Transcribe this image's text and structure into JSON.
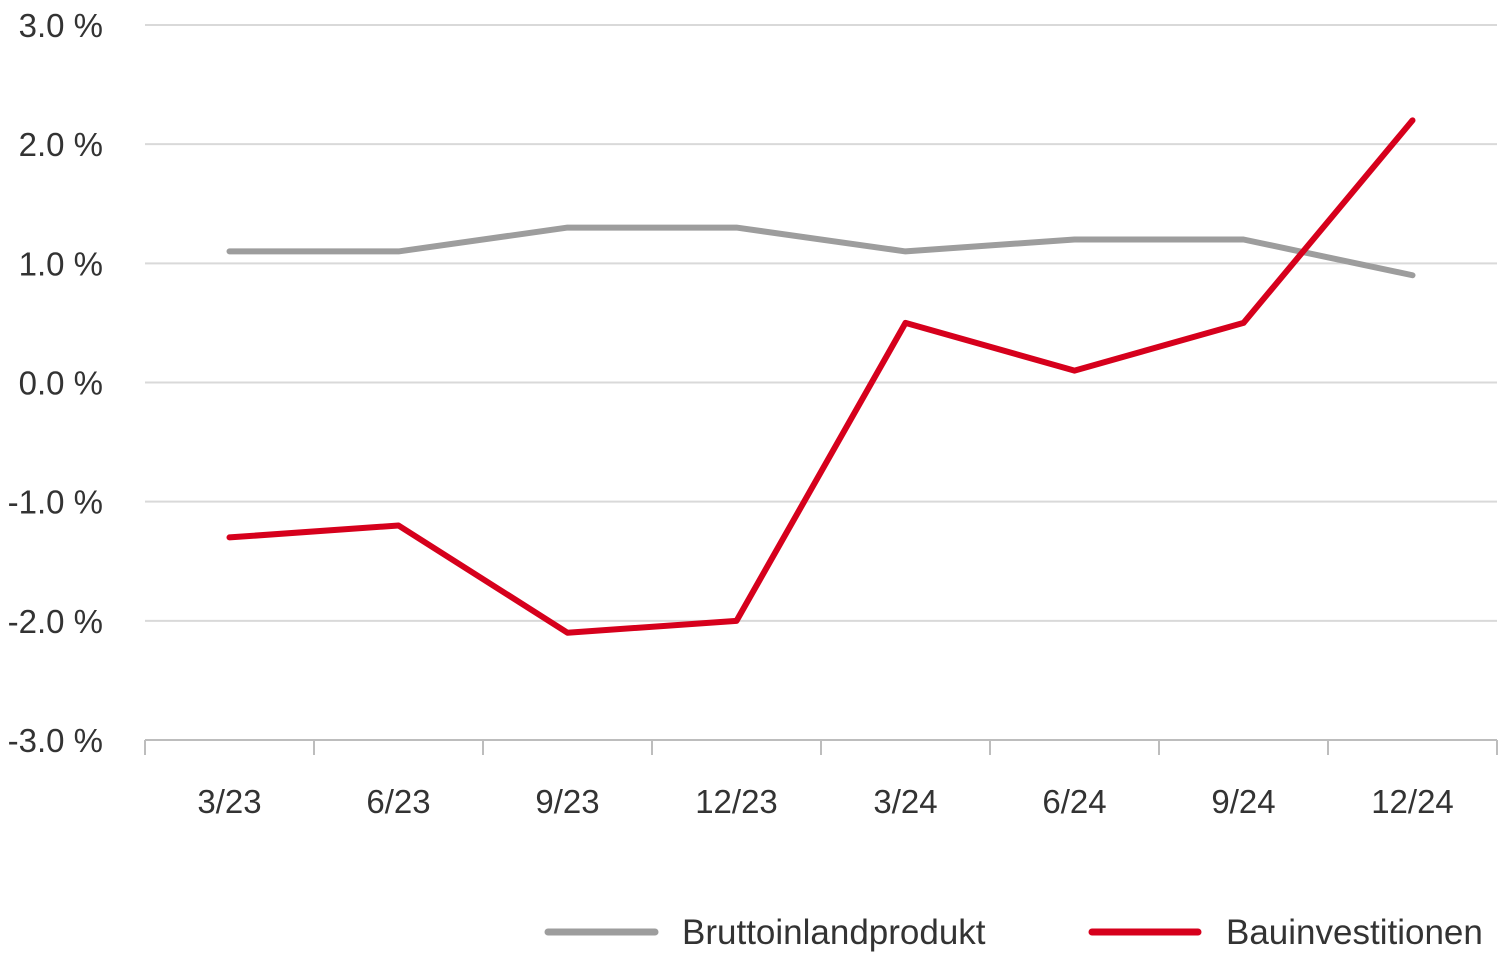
{
  "chart_data": {
    "type": "line",
    "title": "",
    "xlabel": "",
    "ylabel": "",
    "categories": [
      "3/23",
      "6/23",
      "9/23",
      "12/23",
      "3/24",
      "6/24",
      "9/24",
      "12/24"
    ],
    "ylim": [
      -3.0,
      3.0
    ],
    "yticks": [
      3.0,
      2.0,
      1.0,
      0.0,
      -1.0,
      -2.0,
      -3.0
    ],
    "ytick_labels": [
      "3.0 %",
      "2.0 %",
      "1.0 %",
      "0.0 %",
      "-1.0 %",
      "-2.0 %",
      "-3.0 %"
    ],
    "grid": true,
    "legend_position": "bottom-right",
    "series": [
      {
        "name": "Bruttoinlandprodukt",
        "color": "#9d9d9d",
        "values": [
          1.1,
          1.1,
          1.3,
          1.3,
          1.1,
          1.2,
          1.2,
          0.9
        ]
      },
      {
        "name": "Bauinvestitionen",
        "color": "#d6001c",
        "values": [
          -1.3,
          -1.2,
          -2.1,
          -2.0,
          0.5,
          0.1,
          0.5,
          2.2
        ]
      }
    ]
  }
}
